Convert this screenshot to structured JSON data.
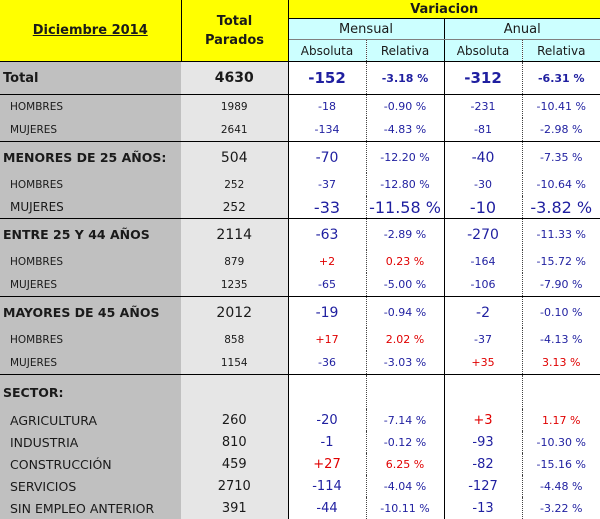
{
  "header": {
    "period": "Diciembre 2014",
    "total_line1": "Total",
    "total_line2": "Parados",
    "variacion": "Variacion",
    "mensual": "Mensual",
    "anual": "Anual",
    "absoluta": "Absoluta",
    "relativa": "Relativa"
  },
  "rows": [
    {
      "label": "Total",
      "total": "4630",
      "m_abs": "-152",
      "m_rel": "-3.18 %",
      "a_abs": "-312",
      "a_rel": "-6.31 %"
    },
    {
      "label": "HOMBRES",
      "total": "1989",
      "m_abs": "-18",
      "m_rel": "-0.90 %",
      "a_abs": "-231",
      "a_rel": "-10.41 %"
    },
    {
      "label": "MUJERES",
      "total": "2641",
      "m_abs": "-134",
      "m_rel": "-4.83 %",
      "a_abs": "-81",
      "a_rel": "-2.98 %"
    },
    {
      "label": "MENORES DE 25 AÑOS:",
      "total": "504",
      "m_abs": "-70",
      "m_rel": "-12.20 %",
      "a_abs": "-40",
      "a_rel": "-7.35 %"
    },
    {
      "label": "HOMBRES",
      "total": "252",
      "m_abs": "-37",
      "m_rel": "-12.80 %",
      "a_abs": "-30",
      "a_rel": "-10.64 %"
    },
    {
      "label": "MUJERES",
      "total": "252",
      "m_abs": "-33",
      "m_rel": "-11.58 %",
      "a_abs": "-10",
      "a_rel": "-3.82 %"
    },
    {
      "label": "ENTRE 25 Y 44 AÑOS",
      "total": "2114",
      "m_abs": "-63",
      "m_rel": "-2.89 %",
      "a_abs": "-270",
      "a_rel": "-11.33 %"
    },
    {
      "label": "HOMBRES",
      "total": "879",
      "m_abs": "+2",
      "m_rel": "0.23 %",
      "a_abs": "-164",
      "a_rel": "-15.72 %"
    },
    {
      "label": "MUJERES",
      "total": "1235",
      "m_abs": "-65",
      "m_rel": "-5.00 %",
      "a_abs": "-106",
      "a_rel": "-7.90 %"
    },
    {
      "label": "MAYORES DE 45 AÑOS",
      "total": "2012",
      "m_abs": "-19",
      "m_rel": "-0.94 %",
      "a_abs": "-2",
      "a_rel": "-0.10 %"
    },
    {
      "label": "HOMBRES",
      "total": "858",
      "m_abs": "+17",
      "m_rel": "2.02 %",
      "a_abs": "-37",
      "a_rel": "-4.13 %"
    },
    {
      "label": "MUJERES",
      "total": "1154",
      "m_abs": "-36",
      "m_rel": "-3.03 %",
      "a_abs": "+35",
      "a_rel": "3.13 %"
    },
    {
      "label": "SECTOR:"
    },
    {
      "label": "AGRICULTURA",
      "total": "260",
      "m_abs": "-20",
      "m_rel": "-7.14 %",
      "a_abs": "+3",
      "a_rel": "1.17 %"
    },
    {
      "label": "INDUSTRIA",
      "total": "810",
      "m_abs": "-1",
      "m_rel": "-0.12 %",
      "a_abs": "-93",
      "a_rel": "-10.30 %"
    },
    {
      "label": "CONSTRUCCIÓN",
      "total": "459",
      "m_abs": "+27",
      "m_rel": "6.25 %",
      "a_abs": "-82",
      "a_rel": "-15.16 %"
    },
    {
      "label": "SERVICIOS",
      "total": "2710",
      "m_abs": "-114",
      "m_rel": "-4.04 %",
      "a_abs": "-127",
      "a_rel": "-4.48 %"
    },
    {
      "label": "SIN EMPLEO ANTERIOR",
      "total": "391",
      "m_abs": "-44",
      "m_rel": "-10.11 %",
      "a_abs": "-13",
      "a_rel": "-3.22 %"
    }
  ],
  "colors": {
    "header_yellow": "#ffff00",
    "subheader_cyan": "#ccffff",
    "label_gray": "#c0c0c0",
    "total_gray": "#e6e6e6",
    "negative_blue": "#1f1fa0",
    "positive_red": "#e00000"
  }
}
